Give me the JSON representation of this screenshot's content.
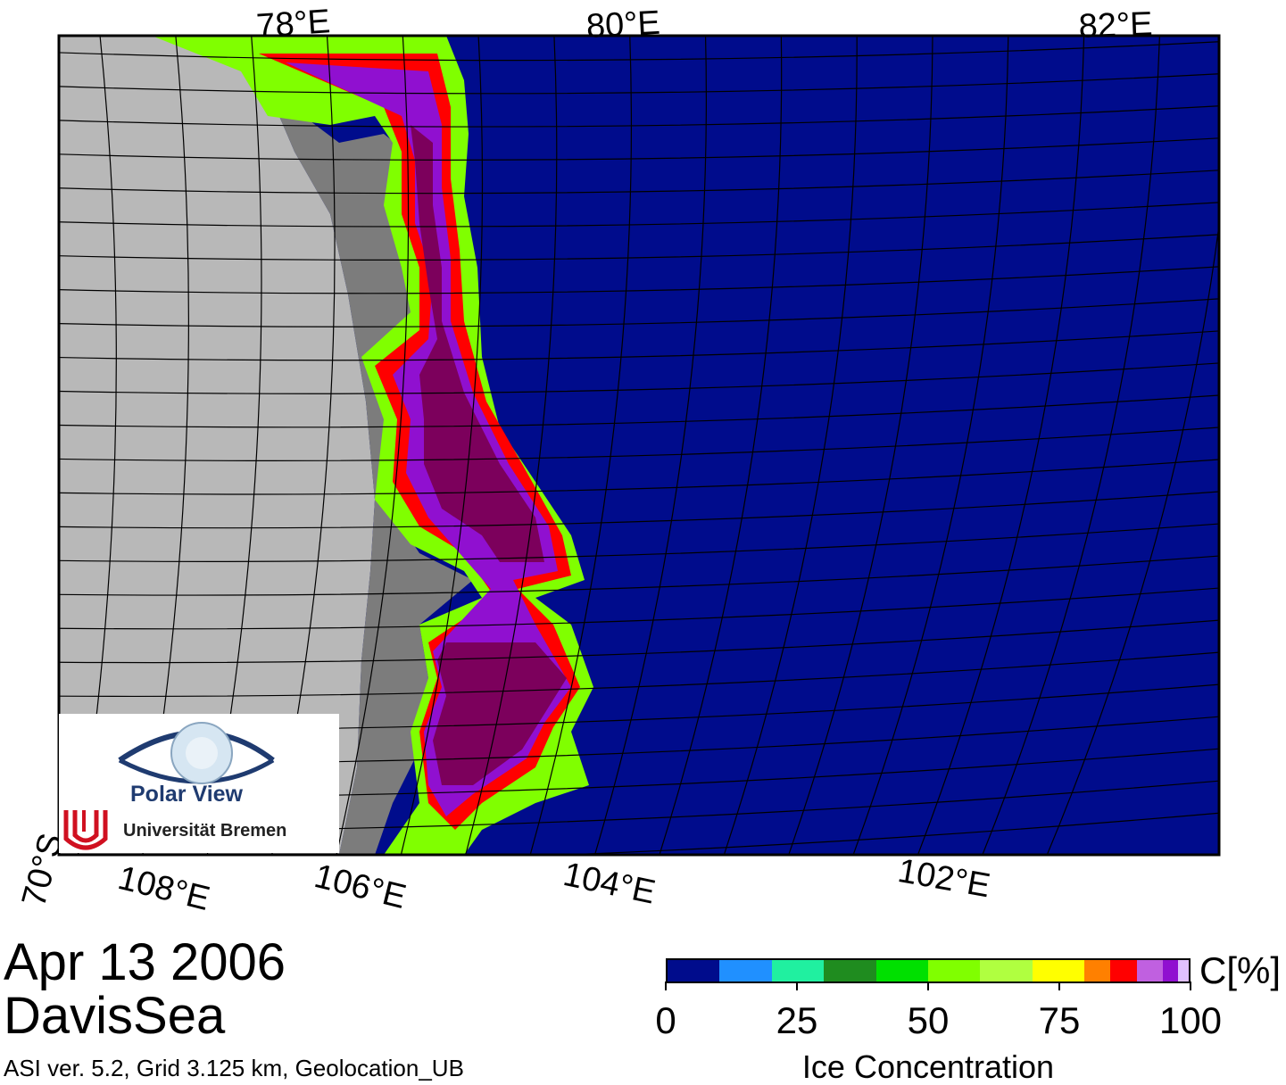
{
  "title": {
    "date": "Apr 13 2006",
    "region": "DavisSea",
    "meta": "ASI ver. 5.2,  Grid 3.125 km, Geolocation_UB"
  },
  "colorbar": {
    "title": "Ice Concentration",
    "unit": "C[%]",
    "ticks": [
      "0",
      "25",
      "50",
      "75",
      "100"
    ],
    "tick_values": [
      0,
      25,
      50,
      75,
      100
    ],
    "colors": [
      "#000c8c",
      "#2090ff",
      "#20f0a0",
      "#1f8c1f",
      "#00e000",
      "#80ff00",
      "#b0ff40",
      "#ffff00",
      "#ff8000",
      "#ff0000",
      "#c060e0",
      "#9010d0",
      "#e0c0ff"
    ],
    "bounds": [
      0,
      10,
      20,
      30,
      40,
      50,
      60,
      70,
      80,
      85,
      90,
      95,
      98,
      100
    ]
  },
  "map": {
    "colors": {
      "water": "#000c8c",
      "land": "#b8b8b8",
      "ice_shelf": "#7c7c7c",
      "high_ice": "#7c005c",
      "grid": "#000000"
    },
    "top_labels": [
      "78°E",
      "80°E",
      "82°E"
    ],
    "bottom_labels": [
      "108°E",
      "106°E",
      "104°E",
      "102°E"
    ],
    "side_labels": [
      "70°S"
    ]
  },
  "logo": {
    "name": "Polar View",
    "institution": "Universität Bremen"
  }
}
